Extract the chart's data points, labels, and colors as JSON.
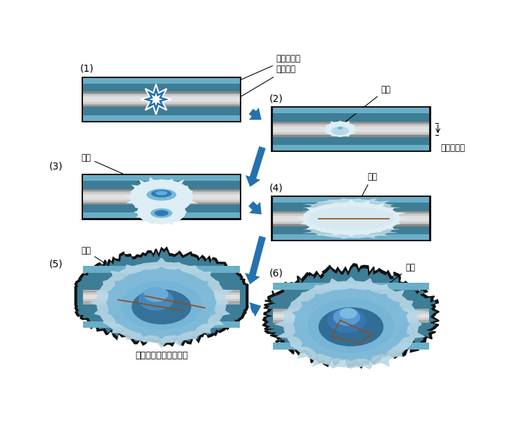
{
  "bg_color": "#ffffff",
  "teal_dark": "#3d7d96",
  "teal_light": "#6aaec8",
  "gray_lumen": "#c8c8c8",
  "gray_lumen_center": "#e8e8e8",
  "gray_lumen_dark": "#aaaaaa",
  "blue_scar_dark": "#1a5580",
  "blue_scar_mid": "#2e7ab8",
  "blue_scar_light": "#7ab8d8",
  "blue_scar_pale": "#b8d8e8",
  "scar_white": "#ddeef5",
  "arrow_color": "#2472b0",
  "outline_color": "#111111",
  "star_fill": "#1e6fb5",
  "brown_line": "#8B5020",
  "panel_labels": [
    "(1)",
    "(2)",
    "(3)",
    "(4)",
    "(5)",
    "(6)"
  ],
  "nyudo_kaimentai": "尿道海綵体",
  "nyudo_nenmaku": "尿道粲膜",
  "hekkon": "瘩痕",
  "nyudo_naikoo": "尿道の内腔",
  "nyudo_gaie_hekkon": "尿道外への瘩痕の波及",
  "roukoo": "竜孔"
}
